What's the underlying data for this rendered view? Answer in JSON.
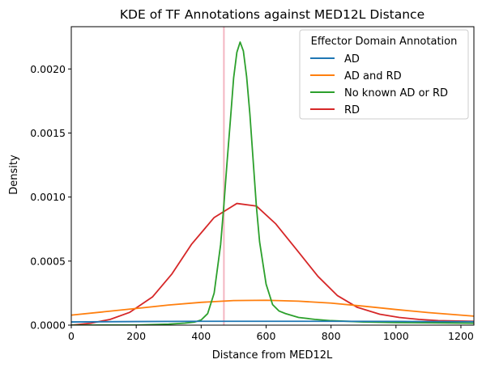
{
  "chart_data": {
    "type": "line",
    "title": "KDE of TF Annotations against MED12L Distance",
    "xlabel": "Distance from MED12L",
    "ylabel": "Density",
    "xlim": [
      0,
      1240
    ],
    "ylim": [
      0,
      0.00233
    ],
    "xticks": [
      0,
      200,
      400,
      600,
      800,
      1000,
      1200
    ],
    "xtick_labels": [
      "0",
      "200",
      "400",
      "600",
      "800",
      "1000",
      "1200"
    ],
    "yticks": [
      0,
      0.0005,
      0.001,
      0.0015,
      0.002
    ],
    "ytick_labels": [
      "0.0000",
      "0.0005",
      "0.0010",
      "0.0015",
      "0.0020"
    ],
    "vline": {
      "x": 470,
      "color": "#f4b6c2"
    },
    "legend": {
      "title": "Effector Domain Annotation",
      "location": "upper right"
    },
    "series": [
      {
        "name": "AD",
        "color": "#1f77b4",
        "x": [
          0,
          200,
          400,
          600,
          800,
          1000,
          1240
        ],
        "y": [
          2.5e-05,
          2.8e-05,
          3e-05,
          3e-05,
          3e-05,
          2.9e-05,
          2.7e-05
        ]
      },
      {
        "name": "AD and RD",
        "color": "#ff7f0e",
        "x": [
          0,
          100,
          200,
          300,
          400,
          500,
          600,
          700,
          800,
          900,
          1000,
          1100,
          1240
        ],
        "y": [
          7.8e-05,
          0.000104,
          0.00013,
          0.000157,
          0.000178,
          0.000192,
          0.000194,
          0.000187,
          0.000172,
          0.000148,
          0.000122,
          9.8e-05,
          7e-05
        ]
      },
      {
        "name": "No known AD or RD",
        "color": "#2ca02c",
        "x": [
          0,
          200,
          300,
          350,
          380,
          400,
          420,
          440,
          460,
          470,
          480,
          490,
          500,
          510,
          520,
          530,
          540,
          550,
          560,
          570,
          580,
          600,
          620,
          640,
          660,
          700,
          750,
          800,
          900,
          1000,
          1240
        ],
        "y": [
          0.0,
          1e-06,
          8e-06,
          1.6e-05,
          2.4e-05,
          4e-05,
          9e-05,
          0.00025,
          0.00063,
          0.00094,
          0.00128,
          0.0016,
          0.00193,
          0.00213,
          0.00221,
          0.00214,
          0.00194,
          0.00165,
          0.00129,
          0.00093,
          0.00065,
          0.00032,
          0.00016,
          0.00011,
          9e-05,
          6e-05,
          4.5e-05,
          3.5e-05,
          2.5e-05,
          2e-05,
          1.5e-05
        ]
      },
      {
        "name": "RD",
        "color": "#d62728",
        "x": [
          0,
          60,
          120,
          180,
          250,
          310,
          370,
          440,
          510,
          570,
          630,
          700,
          760,
          820,
          880,
          950,
          1010,
          1070,
          1130,
          1240
        ],
        "y": [
          0.0,
          1.5e-05,
          4.5e-05,
          0.0001,
          0.00022,
          0.0004,
          0.00063,
          0.00084,
          0.00095,
          0.00093,
          0.00079,
          0.00057,
          0.00038,
          0.00023,
          0.00014,
          8.5e-05,
          6e-05,
          4.5e-05,
          3.5e-05,
          3e-05
        ]
      }
    ]
  }
}
